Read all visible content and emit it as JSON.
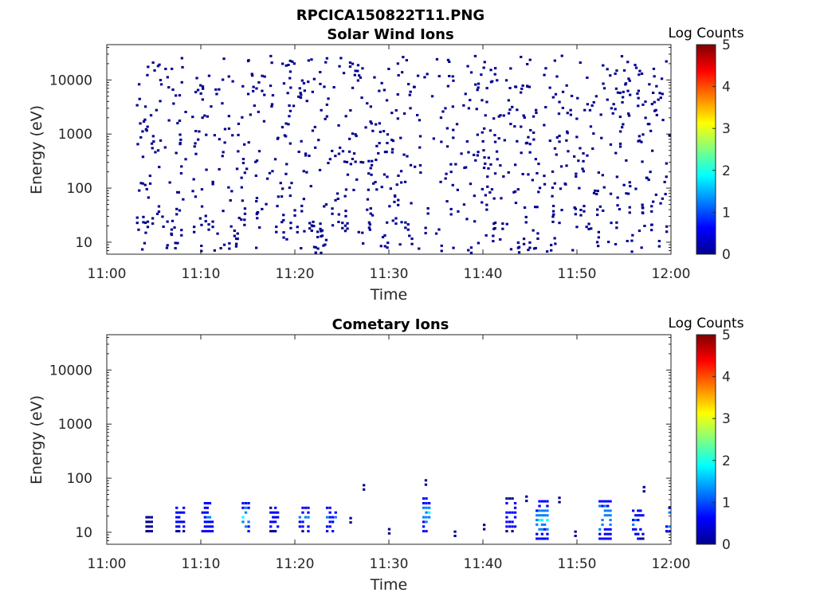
{
  "figure_title": "RPCICA150822T11.PNG",
  "colormap": [
    "#00008f",
    "#0000ff",
    "#0080ff",
    "#00ffff",
    "#80ff80",
    "#ffff00",
    "#ff8000",
    "#ff0000",
    "#800000"
  ],
  "chart_data": [
    {
      "type": "heatmap",
      "title": "Solar Wind Ions",
      "xlabel": "Time",
      "ylabel": "Energy (eV)",
      "x_ticks": [
        "11:00",
        "11:10",
        "11:20",
        "11:30",
        "11:40",
        "11:50",
        "12:00"
      ],
      "xlim_minutes": [
        0,
        60
      ],
      "y_scale": "log",
      "ylim": [
        6,
        45000
      ],
      "y_ticks": [
        10,
        100,
        1000,
        10000
      ],
      "y_tick_labels": [
        "10",
        "100",
        "1000",
        "10000"
      ],
      "colorbar": {
        "label": "Log Counts",
        "range": [
          0,
          5
        ],
        "ticks": [
          "0",
          "1",
          "2",
          "3",
          "4",
          "5"
        ]
      },
      "data_start_minutes": 3,
      "data_end_minutes": 60,
      "pattern": "sparse single counts (log value ~0) scattered across 6-30000 eV"
    },
    {
      "type": "heatmap",
      "title": "Cometary Ions",
      "xlabel": "Time",
      "ylabel": "Energy (eV)",
      "x_ticks": [
        "11:00",
        "11:10",
        "11:20",
        "11:30",
        "11:40",
        "11:50",
        "12:00"
      ],
      "xlim_minutes": [
        0,
        60
      ],
      "y_scale": "log",
      "ylim": [
        6,
        45000
      ],
      "y_ticks": [
        10,
        100,
        1000,
        10000
      ],
      "y_tick_labels": [
        "10",
        "100",
        "1000",
        "10000"
      ],
      "colorbar": {
        "label": "Log Counts",
        "range": [
          0,
          5
        ],
        "ticks": [
          "0",
          "1",
          "2",
          "3",
          "4",
          "5"
        ]
      },
      "clusters": [
        {
          "t": 4.5,
          "w": 0.8,
          "emin": 11,
          "emax": 22,
          "peak": 0.3
        },
        {
          "t": 7.8,
          "w": 1.0,
          "emin": 11,
          "emax": 32,
          "peak": 1.0
        },
        {
          "t": 10.7,
          "w": 1.3,
          "emin": 11,
          "emax": 42,
          "peak": 1.2
        },
        {
          "t": 14.8,
          "w": 0.9,
          "emin": 11,
          "emax": 38,
          "peak": 2.0
        },
        {
          "t": 17.8,
          "w": 1.0,
          "emin": 11,
          "emax": 32,
          "peak": 1.0
        },
        {
          "t": 21.0,
          "w": 1.2,
          "emin": 11,
          "emax": 32,
          "peak": 1.3
        },
        {
          "t": 23.9,
          "w": 1.2,
          "emin": 11,
          "emax": 32,
          "peak": 1.3
        },
        {
          "t": 34.0,
          "w": 0.9,
          "emin": 11,
          "emax": 45,
          "peak": 1.8
        },
        {
          "t": 43.0,
          "w": 1.2,
          "emin": 11,
          "emax": 45,
          "peak": 1.0
        },
        {
          "t": 46.3,
          "w": 1.4,
          "emin": 8,
          "emax": 40,
          "peak": 1.8
        },
        {
          "t": 53.0,
          "w": 1.4,
          "emin": 8,
          "emax": 45,
          "peak": 1.8
        },
        {
          "t": 56.5,
          "w": 1.3,
          "emin": 8,
          "emax": 32,
          "peak": 1.3
        },
        {
          "t": 59.7,
          "w": 0.6,
          "emin": 11,
          "emax": 32,
          "peak": 1.8
        }
      ],
      "sparse_marks": [
        {
          "t": 27.2,
          "e": 65
        },
        {
          "t": 33.8,
          "e": 80
        },
        {
          "t": 29.9,
          "e": 10
        },
        {
          "t": 36.9,
          "e": 9
        },
        {
          "t": 40.0,
          "e": 12
        },
        {
          "t": 49.7,
          "e": 9
        },
        {
          "t": 57.0,
          "e": 60
        },
        {
          "t": 25.8,
          "e": 16
        },
        {
          "t": 48.0,
          "e": 38
        },
        {
          "t": 44.5,
          "e": 40
        }
      ]
    }
  ]
}
